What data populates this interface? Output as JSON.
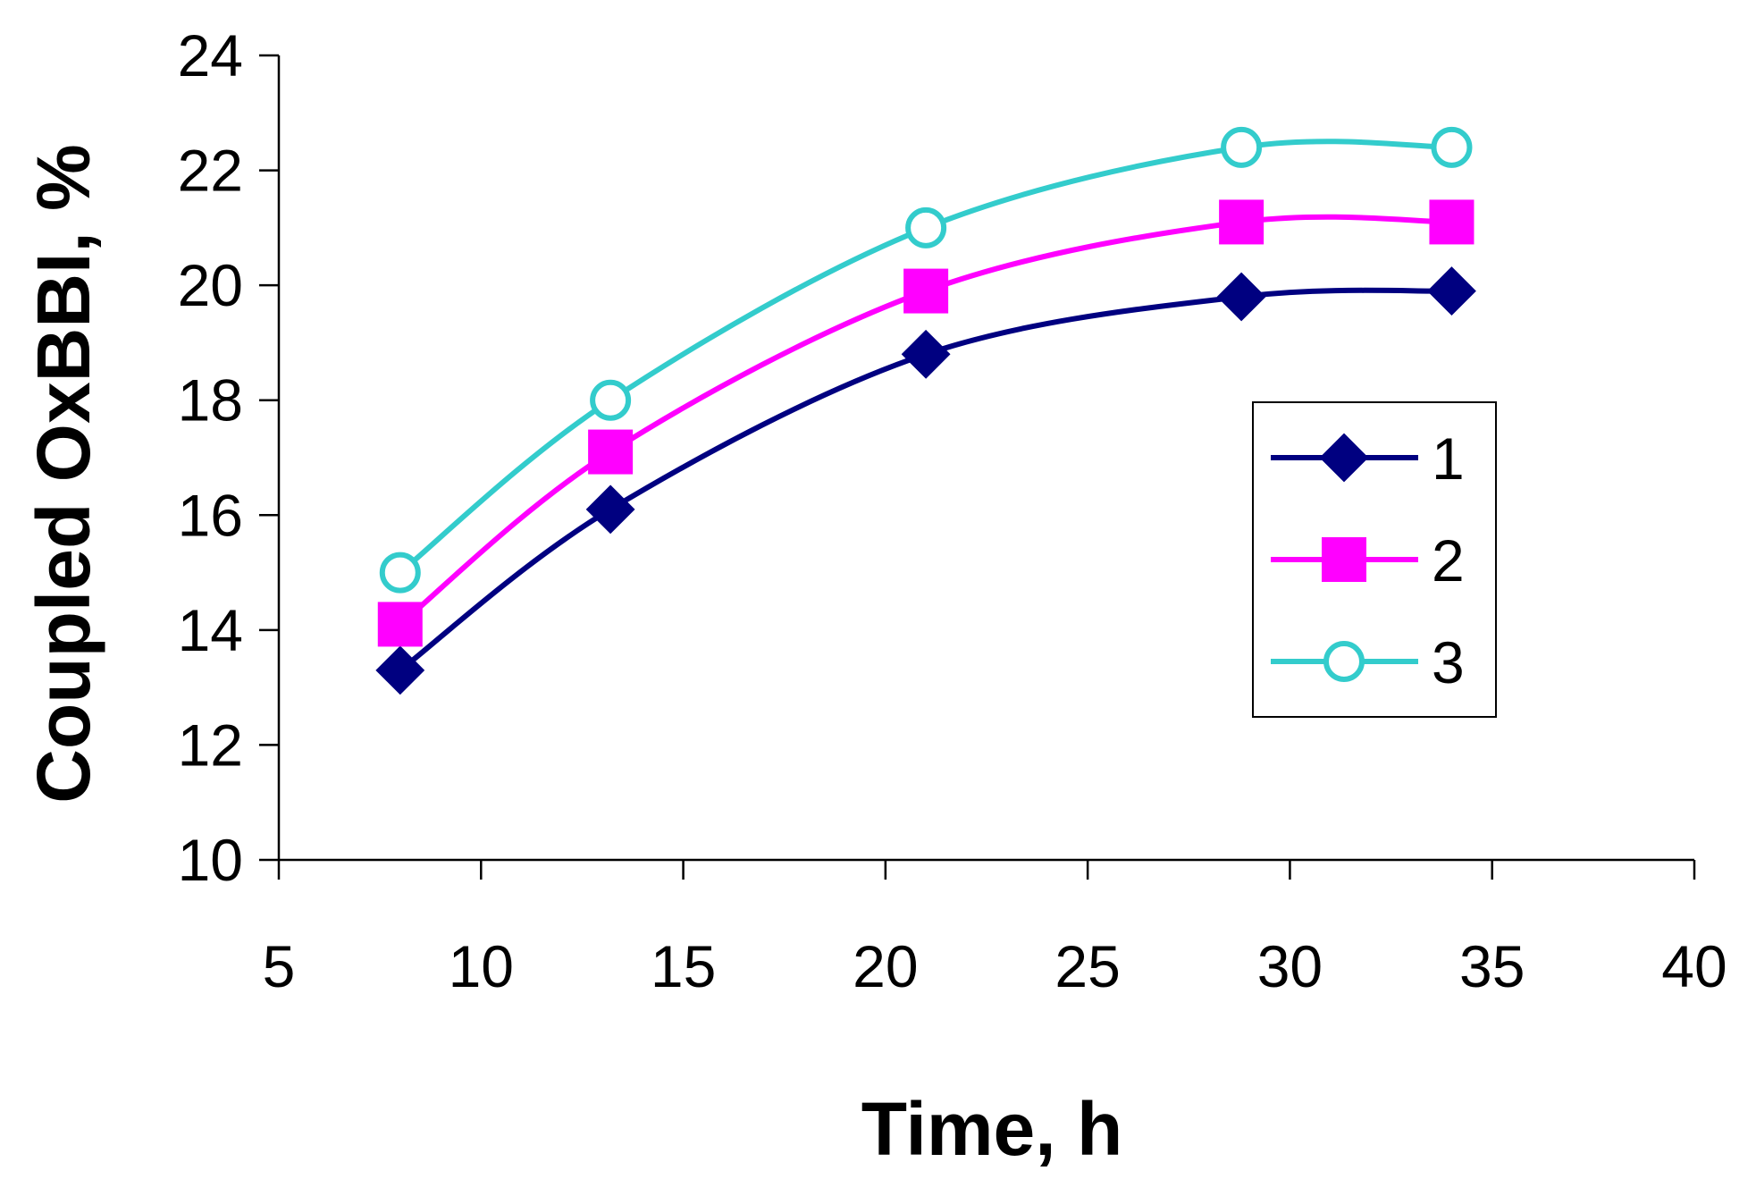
{
  "chart_data": {
    "type": "line",
    "title": "",
    "xlabel": "Time, h",
    "ylabel": "Coupled OxBBI, %",
    "xlim": [
      5,
      40
    ],
    "ylim": [
      10,
      24
    ],
    "xticks": [
      5,
      10,
      15,
      20,
      25,
      30,
      35,
      40
    ],
    "yticks": [
      10,
      12,
      14,
      16,
      18,
      20,
      22,
      24
    ],
    "x": [
      8,
      13.2,
      21,
      28.8,
      34
    ],
    "series": [
      {
        "name": "1",
        "values": [
          13.3,
          16.1,
          18.8,
          19.8,
          19.9
        ],
        "color": "#000080",
        "marker": "diamond"
      },
      {
        "name": "2",
        "values": [
          14.1,
          17.1,
          19.9,
          21.1,
          21.1
        ],
        "color": "#FF00FF",
        "marker": "square"
      },
      {
        "name": "3",
        "values": [
          15.0,
          18.0,
          21.0,
          22.4,
          22.4
        ],
        "color": "#33CCCC",
        "marker": "open-circle"
      }
    ],
    "legend": {
      "position": "right",
      "entries": [
        "1",
        "2",
        "3"
      ]
    },
    "grid": false
  }
}
